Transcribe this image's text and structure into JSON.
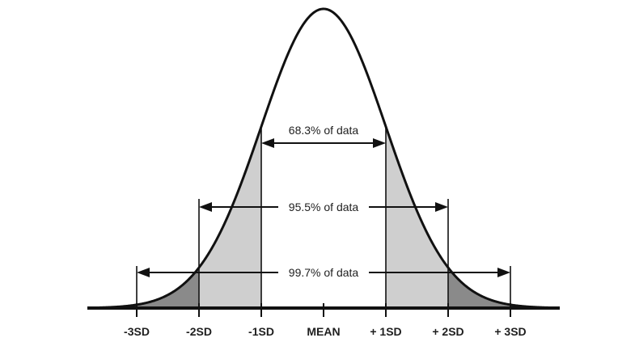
{
  "chart_data": {
    "type": "area",
    "title": "",
    "description_labels": {
      "range_1sd": "68.3% of data",
      "range_2sd": "95.5% of data",
      "range_3sd": "99.7% of data"
    },
    "x_ticks": [
      "-3SD",
      "-2SD",
      "-1SD",
      "MEAN",
      "+ 1SD",
      "+ 2SD",
      "+ 3SD"
    ],
    "x_values": [
      -3,
      -2,
      -1,
      0,
      1,
      2,
      3
    ],
    "xlim": [
      -3.75,
      3.75
    ],
    "curve": "normal distribution",
    "mean": 0,
    "sd": 1,
    "regions": [
      {
        "name": "beyond-3sd",
        "from": -3.75,
        "to": -3,
        "color": "#3a3a3a"
      },
      {
        "name": "2sd-to-3sd",
        "from": -3,
        "to": -2,
        "color": "#8a8a8a"
      },
      {
        "name": "1sd-to-2sd",
        "from": -2,
        "to": -1,
        "color": "#cfcfcf"
      },
      {
        "name": "center",
        "from": -1,
        "to": 1,
        "color": "#ffffff"
      },
      {
        "name": "1sd-to-2sd-right",
        "from": 1,
        "to": 2,
        "color": "#cfcfcf"
      },
      {
        "name": "2sd-to-3sd-right",
        "from": 2,
        "to": 3,
        "color": "#8a8a8a"
      },
      {
        "name": "beyond-3sd-right",
        "from": 3,
        "to": 3.75,
        "color": "#3a3a3a"
      }
    ],
    "ranges": [
      {
        "label_key": "range_1sd",
        "from": -1,
        "to": 1
      },
      {
        "label_key": "range_2sd",
        "from": -2,
        "to": 2
      },
      {
        "label_key": "range_3sd",
        "from": -3,
        "to": 3
      }
    ]
  },
  "colors": {
    "stroke": "#111111",
    "text": "#1f1f1f"
  }
}
